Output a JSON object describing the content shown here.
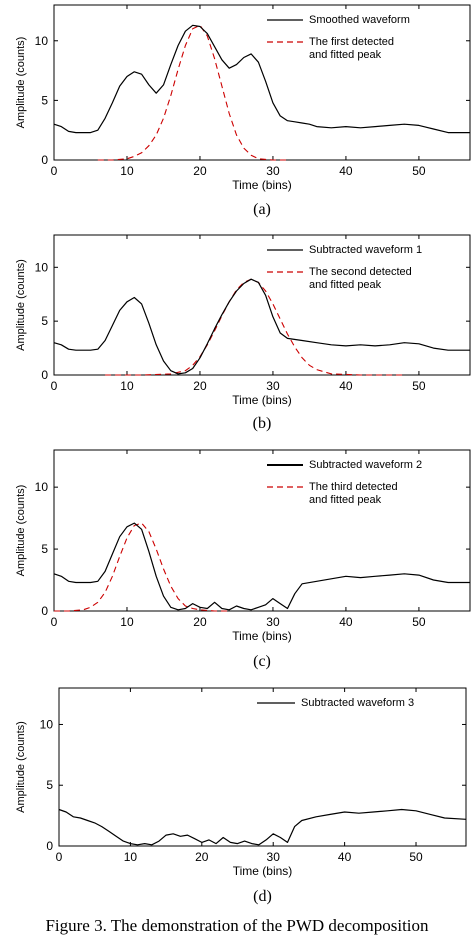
{
  "chart_data": [
    {
      "type": "line",
      "panel_label": "(a)",
      "xlabel": "Time (bins)",
      "ylabel": "Amplitude (counts)",
      "xlim": [
        0,
        57
      ],
      "ylim": [
        0,
        13
      ],
      "xticks": [
        0,
        10,
        20,
        30,
        40,
        50
      ],
      "yticks": [
        0,
        5,
        10
      ],
      "legend_position": "top-right",
      "series": [
        {
          "name": "Smoothed waveform",
          "style": "solid",
          "color": "#000000",
          "x": [
            0,
            1,
            2,
            3,
            4,
            5,
            6,
            7,
            8,
            9,
            10,
            11,
            12,
            13,
            14,
            15,
            16,
            17,
            18,
            19,
            20,
            21,
            22,
            23,
            24,
            25,
            26,
            27,
            28,
            29,
            30,
            31,
            32,
            33,
            34,
            35,
            36,
            38,
            40,
            42,
            44,
            46,
            48,
            50,
            52,
            54,
            57
          ],
          "y": [
            3.0,
            2.8,
            2.4,
            2.3,
            2.3,
            2.3,
            2.5,
            3.5,
            4.8,
            6.2,
            7.0,
            7.4,
            7.2,
            6.3,
            5.6,
            6.3,
            8.0,
            9.6,
            10.8,
            11.3,
            11.2,
            10.6,
            9.5,
            8.4,
            7.7,
            8.0,
            8.6,
            8.9,
            8.2,
            6.6,
            4.8,
            3.7,
            3.3,
            3.2,
            3.1,
            3.0,
            2.8,
            2.7,
            2.8,
            2.7,
            2.8,
            2.9,
            3.0,
            2.9,
            2.6,
            2.3,
            2.3
          ]
        },
        {
          "name": "The first detected and fitted peak",
          "style": "dashed",
          "color": "#cc0000",
          "x": [
            6,
            8,
            10,
            11,
            12,
            13,
            14,
            15,
            16,
            17,
            18,
            19,
            20,
            21,
            22,
            23,
            24,
            25,
            26,
            27,
            28,
            30,
            32
          ],
          "y": [
            0.0,
            0.0,
            0.1,
            0.3,
            0.6,
            1.2,
            2.1,
            3.5,
            5.4,
            7.6,
            9.6,
            11.0,
            11.3,
            10.4,
            8.5,
            6.2,
            3.9,
            2.1,
            1.0,
            0.4,
            0.1,
            0.0,
            0.0
          ]
        }
      ]
    },
    {
      "type": "line",
      "panel_label": "(b)",
      "xlabel": "Time (bins)",
      "ylabel": "Amplitude (counts)",
      "xlim": [
        0,
        57
      ],
      "ylim": [
        0,
        13
      ],
      "xticks": [
        0,
        10,
        20,
        30,
        40,
        50
      ],
      "yticks": [
        0,
        5,
        10
      ],
      "legend_position": "top-right",
      "series": [
        {
          "name": "Subtracted waveform 1",
          "style": "solid",
          "color": "#000000",
          "x": [
            0,
            1,
            2,
            3,
            4,
            5,
            6,
            7,
            8,
            9,
            10,
            11,
            12,
            13,
            14,
            15,
            16,
            17,
            18,
            19,
            20,
            21,
            22,
            23,
            24,
            25,
            26,
            27,
            28,
            29,
            30,
            31,
            32,
            34,
            36,
            38,
            40,
            42,
            44,
            46,
            48,
            50,
            52,
            54,
            57
          ],
          "y": [
            3.0,
            2.8,
            2.4,
            2.3,
            2.3,
            2.3,
            2.4,
            3.2,
            4.6,
            6.0,
            6.8,
            7.2,
            6.6,
            4.8,
            2.8,
            1.3,
            0.4,
            0.1,
            0.2,
            0.6,
            1.6,
            2.9,
            4.3,
            5.6,
            6.8,
            7.8,
            8.5,
            8.9,
            8.6,
            7.4,
            5.4,
            3.9,
            3.4,
            3.2,
            3.0,
            2.8,
            2.7,
            2.8,
            2.7,
            2.8,
            3.0,
            2.9,
            2.5,
            2.3,
            2.3
          ]
        },
        {
          "name": "The second detected and fitted peak",
          "style": "dashed",
          "color": "#cc0000",
          "x": [
            7,
            12,
            16,
            18,
            19,
            20,
            21,
            22,
            23,
            24,
            25,
            26,
            27,
            28,
            29,
            30,
            31,
            32,
            33,
            34,
            35,
            36,
            38,
            42,
            48
          ],
          "y": [
            0.0,
            0.0,
            0.1,
            0.4,
            0.9,
            1.7,
            2.8,
            4.1,
            5.5,
            6.8,
            7.9,
            8.6,
            8.9,
            8.6,
            7.8,
            6.6,
            5.2,
            3.8,
            2.6,
            1.6,
            0.9,
            0.5,
            0.1,
            0.0,
            0.0
          ]
        }
      ]
    },
    {
      "type": "line",
      "panel_label": "(c)",
      "xlabel": "Time (bins)",
      "ylabel": "Amplitude (counts)",
      "xlim": [
        0,
        57
      ],
      "ylim": [
        0,
        13
      ],
      "xticks": [
        0,
        10,
        20,
        30,
        40,
        50
      ],
      "yticks": [
        0,
        5,
        10
      ],
      "legend_position": "top-right",
      "series": [
        {
          "name": "Subtracted waveform 2",
          "style": "solid",
          "color": "#000000",
          "x": [
            0,
            1,
            2,
            3,
            4,
            5,
            6,
            7,
            8,
            9,
            10,
            11,
            12,
            13,
            14,
            15,
            16,
            17,
            18,
            19,
            20,
            21,
            22,
            23,
            24,
            25,
            26,
            27,
            28,
            29,
            30,
            31,
            32,
            33,
            34,
            36,
            38,
            40,
            42,
            44,
            46,
            48,
            50,
            52,
            54,
            57
          ],
          "y": [
            3.0,
            2.8,
            2.4,
            2.3,
            2.3,
            2.3,
            2.4,
            3.2,
            4.6,
            6.0,
            6.8,
            7.1,
            6.6,
            4.8,
            2.8,
            1.2,
            0.3,
            0.1,
            0.2,
            0.6,
            0.3,
            0.2,
            0.7,
            0.2,
            0.1,
            0.4,
            0.2,
            0.1,
            0.3,
            0.5,
            1.0,
            0.6,
            0.2,
            1.4,
            2.2,
            2.4,
            2.6,
            2.8,
            2.7,
            2.8,
            2.9,
            3.0,
            2.9,
            2.5,
            2.3,
            2.3
          ]
        },
        {
          "name": "The third detected and fitted peak",
          "style": "dashed",
          "color": "#cc0000",
          "x": [
            0,
            2,
            4,
            5,
            6,
            7,
            8,
            9,
            10,
            11,
            12,
            13,
            14,
            15,
            16,
            17,
            18,
            19,
            20,
            22,
            24
          ],
          "y": [
            0.0,
            0.0,
            0.1,
            0.3,
            0.7,
            1.5,
            2.8,
            4.4,
            5.9,
            6.9,
            7.1,
            6.4,
            5.0,
            3.4,
            2.0,
            1.0,
            0.4,
            0.2,
            0.1,
            0.0,
            0.0
          ]
        }
      ]
    },
    {
      "type": "line",
      "panel_label": "(d)",
      "xlabel": "Time (bins)",
      "ylabel": "Amplitude (counts)",
      "xlim": [
        0,
        57
      ],
      "ylim": [
        0,
        13
      ],
      "xticks": [
        0,
        10,
        20,
        30,
        40,
        50
      ],
      "yticks": [
        0,
        5,
        10
      ],
      "legend_position": "top-right",
      "series": [
        {
          "name": "Subtracted waveform 3",
          "style": "solid",
          "color": "#000000",
          "x": [
            0,
            1,
            2,
            3,
            4,
            5,
            6,
            7,
            8,
            9,
            10,
            11,
            12,
            13,
            14,
            15,
            16,
            17,
            18,
            19,
            20,
            21,
            22,
            23,
            24,
            25,
            26,
            27,
            28,
            29,
            30,
            31,
            32,
            33,
            34,
            36,
            38,
            40,
            42,
            44,
            46,
            48,
            50,
            52,
            54,
            57
          ],
          "y": [
            3.0,
            2.8,
            2.4,
            2.3,
            2.1,
            1.9,
            1.6,
            1.2,
            0.8,
            0.4,
            0.2,
            0.1,
            0.2,
            0.1,
            0.4,
            0.9,
            1.0,
            0.8,
            0.9,
            0.6,
            0.3,
            0.5,
            0.2,
            0.7,
            0.3,
            0.2,
            0.4,
            0.2,
            0.1,
            0.5,
            1.0,
            0.7,
            0.3,
            1.6,
            2.1,
            2.4,
            2.6,
            2.8,
            2.7,
            2.8,
            2.9,
            3.0,
            2.9,
            2.6,
            2.3,
            2.2
          ]
        }
      ]
    }
  ],
  "caption": "Figure 3. The demonstration of the PWD decomposition"
}
